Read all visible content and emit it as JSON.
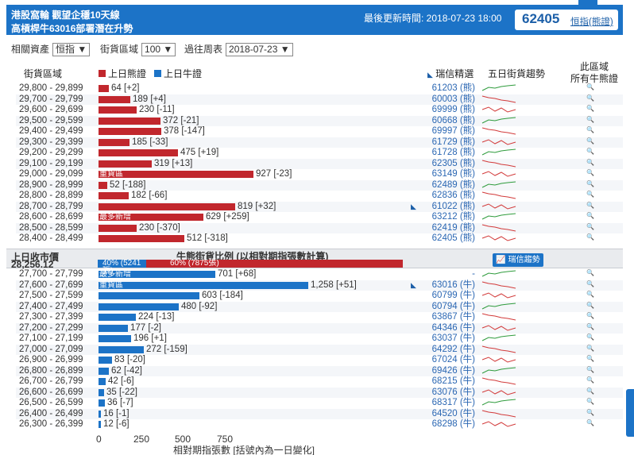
{
  "header": {
    "line1": "港股窩輪 觀望企穩10天線",
    "line2": "高槓桿牛63016部署潛在升勢",
    "updated": "最後更新時間: 2018-07-23 18:00",
    "index_value": "62405",
    "index_link": "恒指(熊證)",
    "color": "#1c73c7"
  },
  "controls": {
    "asset_label": "相關資產",
    "asset_value": "恒指 ▼",
    "range_label": "街貨區域",
    "range_value": "100 ▼",
    "week_label": "過往周表",
    "week_value": "2018-07-23 ▼"
  },
  "columns": {
    "zone": "街貨區域",
    "bear_legend": "上日熊證",
    "bull_legend": "上日牛證",
    "pick": "瑞信精選",
    "trend": "五日街貨趨勢",
    "all_line1": "此區域",
    "all_line2": "所有牛熊證",
    "bear_color": "#c1272d",
    "bull_color": "#1c73c7"
  },
  "bear_rows": [
    {
      "range": "29,800 - 29,899",
      "value": 64,
      "label": "64 [+2]",
      "code": "61203 (熊)",
      "tag": ""
    },
    {
      "range": "29,700 - 29,799",
      "value": 189,
      "label": "189 [+4]",
      "code": "60003 (熊)",
      "tag": ""
    },
    {
      "range": "29,600 - 29,699",
      "value": 230,
      "label": "230 [-11]",
      "code": "69999 (熊)",
      "tag": ""
    },
    {
      "range": "29,500 - 29,599",
      "value": 372,
      "label": "372 [-21]",
      "code": "60668 (熊)",
      "tag": ""
    },
    {
      "range": "29,400 - 29,499",
      "value": 378,
      "label": "378 [-147]",
      "code": "69997 (熊)",
      "tag": ""
    },
    {
      "range": "29,300 - 29,399",
      "value": 185,
      "label": "185 [-33]",
      "code": "61729 (熊)",
      "tag": ""
    },
    {
      "range": "29,200 - 29,299",
      "value": 475,
      "label": "475 [+19]",
      "code": "61728 (熊)",
      "tag": ""
    },
    {
      "range": "29,100 - 29,199",
      "value": 319,
      "label": "319 [+13]",
      "code": "62305 (熊)",
      "tag": ""
    },
    {
      "range": "29,000 - 29,099",
      "value": 927,
      "label": "927 [-23]",
      "code": "63149 (熊)",
      "tag": "重貨區"
    },
    {
      "range": "28,900 - 28,999",
      "value": 52,
      "label": "52 [-188]",
      "code": "62489 (熊)",
      "tag": ""
    },
    {
      "range": "28,800 - 28,899",
      "value": 182,
      "label": "182 [-66]",
      "code": "62836 (熊)",
      "tag": ""
    },
    {
      "range": "28,700 - 28,799",
      "value": 819,
      "label": "819 [+32]",
      "code": "61022 (熊)",
      "tag": ""
    },
    {
      "range": "28,600 - 28,699",
      "value": 629,
      "label": "629 [+259]",
      "code": "63212 (熊)",
      "tag": "最多新增"
    },
    {
      "range": "28,500 - 28,599",
      "value": 230,
      "label": "230 [-370]",
      "code": "62419 (熊)",
      "tag": ""
    },
    {
      "range": "28,400 - 28,499",
      "value": 512,
      "label": "512 [-318]",
      "code": "62405 (熊)",
      "tag": ""
    }
  ],
  "middle": {
    "close_label": "上日收市價",
    "close_value": "28,256.12",
    "ratio_title": "牛熊街貨比例 (以相對期指張數計算)",
    "bull_pct": 40,
    "bull_text": "40% (5241張)",
    "bear_text": "60% (7875張)",
    "trend_button": "瑞信趨勢"
  },
  "bull_rows": [
    {
      "range": "27,700 - 27,799",
      "value": 701,
      "label": "701 [+68]",
      "code": "-",
      "tag": "最多新增"
    },
    {
      "range": "27,600 - 27,699",
      "value": 1258,
      "label": "1,258 [+51]",
      "code": "63016 (牛)",
      "tag": "重貨區"
    },
    {
      "range": "27,500 - 27,599",
      "value": 603,
      "label": "603 [-184]",
      "code": "60799 (牛)",
      "tag": ""
    },
    {
      "range": "27,400 - 27,499",
      "value": 480,
      "label": "480 [-92]",
      "code": "60794 (牛)",
      "tag": ""
    },
    {
      "range": "27,300 - 27,399",
      "value": 224,
      "label": "224 [-13]",
      "code": "63867 (牛)",
      "tag": ""
    },
    {
      "range": "27,200 - 27,299",
      "value": 177,
      "label": "177 [-2]",
      "code": "64346 (牛)",
      "tag": ""
    },
    {
      "range": "27,100 - 27,199",
      "value": 196,
      "label": "196 [+1]",
      "code": "63037 (牛)",
      "tag": ""
    },
    {
      "range": "27,000 - 27,099",
      "value": 272,
      "label": "272 [-159]",
      "code": "64292 (牛)",
      "tag": ""
    },
    {
      "range": "26,900 - 26,999",
      "value": 83,
      "label": "83 [-20]",
      "code": "67024 (牛)",
      "tag": ""
    },
    {
      "range": "26,800 - 26,899",
      "value": 62,
      "label": "62 [-42]",
      "code": "69426 (牛)",
      "tag": ""
    },
    {
      "range": "26,700 - 26,799",
      "value": 42,
      "label": "42 [-6]",
      "code": "68215 (牛)",
      "tag": ""
    },
    {
      "range": "26,600 - 26,699",
      "value": 35,
      "label": "35 [-22]",
      "code": "63076 (牛)",
      "tag": ""
    },
    {
      "range": "26,500 - 26,599",
      "value": 36,
      "label": "36 [-7]",
      "code": "68317 (牛)",
      "tag": ""
    },
    {
      "range": "26,400 - 26,499",
      "value": 16,
      "label": "16 [-1]",
      "code": "64520 (牛)",
      "tag": ""
    },
    {
      "range": "26,300 - 26,399",
      "value": 12,
      "label": "12 [-6]",
      "code": "68298 (牛)",
      "tag": ""
    }
  ],
  "axis": {
    "ticks": [
      "0",
      "250",
      "500",
      "750"
    ],
    "title": "相對期指張數 [括號內為一日變化]"
  },
  "chart_data": {
    "type": "bar",
    "xlabel": "相對期指張數 [括號內為一日變化]",
    "xlim": [
      0,
      1258
    ],
    "series": [
      {
        "name": "上日熊證",
        "categories": [
          "29,800 - 29,899",
          "29,700 - 29,799",
          "29,600 - 29,699",
          "29,500 - 29,599",
          "29,400 - 29,499",
          "29,300 - 29,399",
          "29,200 - 29,299",
          "29,100 - 29,199",
          "29,000 - 29,099",
          "28,900 - 28,999",
          "28,800 - 28,899",
          "28,700 - 28,799",
          "28,600 - 28,699",
          "28,500 - 28,599",
          "28,400 - 28,499"
        ],
        "values": [
          64,
          189,
          230,
          372,
          378,
          185,
          475,
          319,
          927,
          52,
          182,
          819,
          629,
          230,
          512
        ]
      },
      {
        "name": "上日牛證",
        "categories": [
          "27,700 - 27,799",
          "27,600 - 27,699",
          "27,500 - 27,599",
          "27,400 - 27,499",
          "27,300 - 27,399",
          "27,200 - 27,299",
          "27,100 - 27,199",
          "27,000 - 27,099",
          "26,900 - 26,999",
          "26,800 - 26,899",
          "26,700 - 26,799",
          "26,600 - 26,699",
          "26,500 - 26,599",
          "26,400 - 26,499",
          "26,300 - 26,399"
        ],
        "values": [
          701,
          1258,
          603,
          480,
          224,
          177,
          196,
          272,
          83,
          62,
          42,
          35,
          36,
          16,
          12
        ]
      }
    ]
  }
}
